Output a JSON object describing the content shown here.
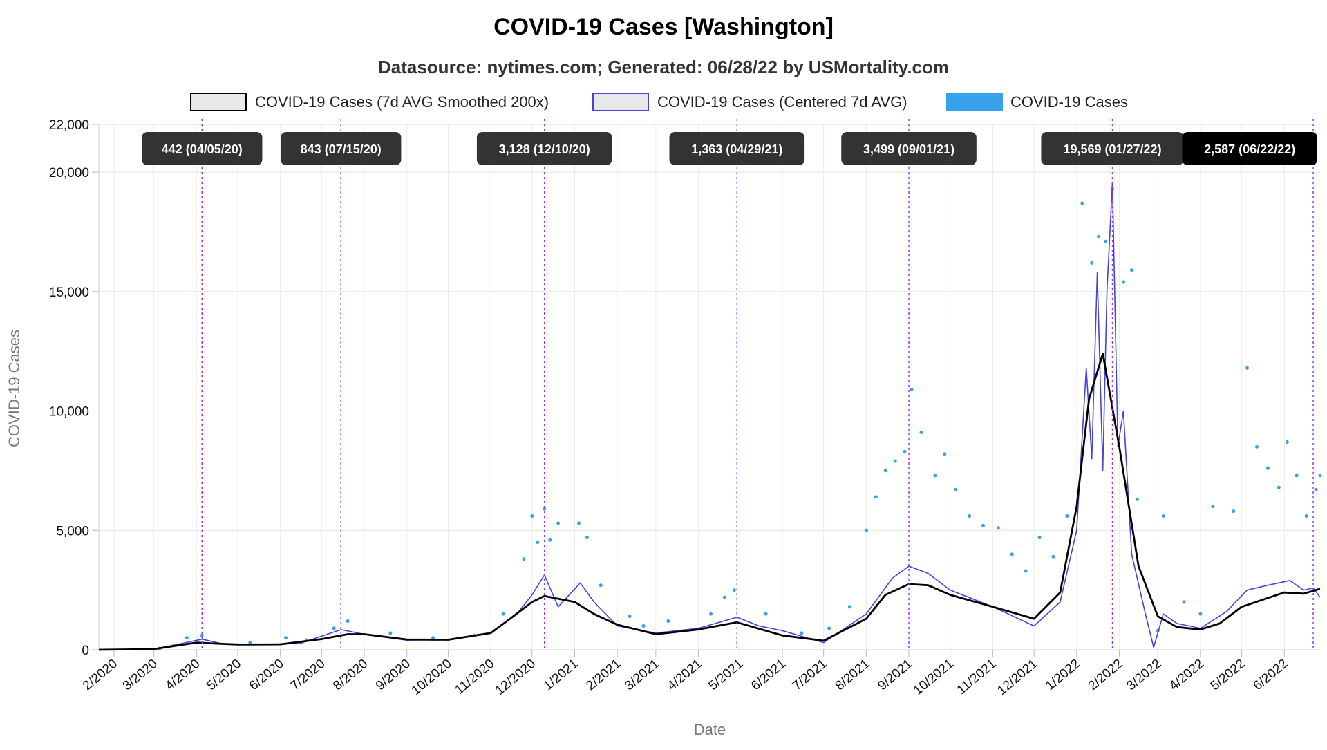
{
  "chart_data": {
    "type": "line",
    "title": "COVID-19 Cases [Washington]",
    "subtitle": "Datasource: nytimes.com; Generated: 06/28/22 by USMortality.com",
    "xlabel": "Date",
    "ylabel": "COVID-19 Cases",
    "ylim": [
      0,
      22000
    ],
    "yticks": [
      0,
      5000,
      10000,
      15000,
      20000,
      22000
    ],
    "ytick_labels": [
      "0",
      "5,000",
      "10,000",
      "15,000",
      "20,000",
      "22,000"
    ],
    "x_range": [
      "2020-01-21",
      "2022-06-27"
    ],
    "x_ticks": [
      {
        "date": "2020-02-01",
        "label": "2/2020"
      },
      {
        "date": "2020-03-01",
        "label": "3/2020"
      },
      {
        "date": "2020-04-01",
        "label": "4/2020"
      },
      {
        "date": "2020-05-01",
        "label": "5/2020"
      },
      {
        "date": "2020-06-01",
        "label": "6/2020"
      },
      {
        "date": "2020-07-01",
        "label": "7/2020"
      },
      {
        "date": "2020-08-01",
        "label": "8/2020"
      },
      {
        "date": "2020-09-01",
        "label": "9/2020"
      },
      {
        "date": "2020-10-01",
        "label": "10/2020"
      },
      {
        "date": "2020-11-01",
        "label": "11/2020"
      },
      {
        "date": "2020-12-01",
        "label": "12/2020"
      },
      {
        "date": "2021-01-01",
        "label": "1/2021"
      },
      {
        "date": "2021-02-01",
        "label": "2/2021"
      },
      {
        "date": "2021-03-01",
        "label": "3/2021"
      },
      {
        "date": "2021-04-01",
        "label": "4/2021"
      },
      {
        "date": "2021-05-01",
        "label": "5/2021"
      },
      {
        "date": "2021-06-01",
        "label": "6/2021"
      },
      {
        "date": "2021-07-01",
        "label": "7/2021"
      },
      {
        "date": "2021-08-01",
        "label": "8/2021"
      },
      {
        "date": "2021-09-01",
        "label": "9/2021"
      },
      {
        "date": "2021-10-01",
        "label": "10/2021"
      },
      {
        "date": "2021-11-01",
        "label": "11/2021"
      },
      {
        "date": "2021-12-01",
        "label": "12/2021"
      },
      {
        "date": "2022-01-01",
        "label": "1/2022"
      },
      {
        "date": "2022-02-01",
        "label": "2/2022"
      },
      {
        "date": "2022-03-01",
        "label": "3/2022"
      },
      {
        "date": "2022-04-01",
        "label": "4/2022"
      },
      {
        "date": "2022-05-01",
        "label": "5/2022"
      },
      {
        "date": "2022-06-01",
        "label": "6/2022"
      }
    ],
    "legend": {
      "placement": "top",
      "items": [
        {
          "label": "COVID-19 Cases (7d AVG Smoothed 200x)",
          "fill": "#e8e8e8",
          "stroke": "#000000"
        },
        {
          "label": "COVID-19 Cases (Centered 7d AVG)",
          "fill": "#e8e8e8",
          "stroke": "#4444dd"
        },
        {
          "label": "COVID-19 Cases",
          "fill": "#36a2eb",
          "stroke": "#36a2eb"
        }
      ]
    },
    "series": [
      {
        "name": "COVID-19 Cases (7d AVG Smoothed 200x)",
        "color": "#000000",
        "points": [
          [
            "2020-01-21",
            0
          ],
          [
            "2020-03-01",
            30
          ],
          [
            "2020-03-15",
            150
          ],
          [
            "2020-04-01",
            300
          ],
          [
            "2020-04-15",
            260
          ],
          [
            "2020-05-01",
            220
          ],
          [
            "2020-06-01",
            230
          ],
          [
            "2020-07-01",
            450
          ],
          [
            "2020-07-20",
            650
          ],
          [
            "2020-08-01",
            650
          ],
          [
            "2020-09-01",
            430
          ],
          [
            "2020-10-01",
            420
          ],
          [
            "2020-11-01",
            700
          ],
          [
            "2020-11-15",
            1300
          ],
          [
            "2020-12-01",
            2000
          ],
          [
            "2020-12-10",
            2250
          ],
          [
            "2021-01-01",
            2000
          ],
          [
            "2021-01-15",
            1500
          ],
          [
            "2021-02-01",
            1050
          ],
          [
            "2021-03-01",
            650
          ],
          [
            "2021-04-01",
            850
          ],
          [
            "2021-04-29",
            1150
          ],
          [
            "2021-06-01",
            600
          ],
          [
            "2021-07-01",
            380
          ],
          [
            "2021-08-01",
            1300
          ],
          [
            "2021-08-15",
            2300
          ],
          [
            "2021-09-01",
            2750
          ],
          [
            "2021-09-15",
            2700
          ],
          [
            "2021-10-01",
            2300
          ],
          [
            "2021-11-01",
            1800
          ],
          [
            "2021-12-01",
            1300
          ],
          [
            "2021-12-20",
            2400
          ],
          [
            "2022-01-01",
            6000
          ],
          [
            "2022-01-10",
            10500
          ],
          [
            "2022-01-20",
            12400
          ],
          [
            "2022-02-01",
            8500
          ],
          [
            "2022-02-15",
            3500
          ],
          [
            "2022-03-01",
            1400
          ],
          [
            "2022-03-15",
            950
          ],
          [
            "2022-04-01",
            850
          ],
          [
            "2022-04-15",
            1100
          ],
          [
            "2022-05-01",
            1800
          ],
          [
            "2022-06-01",
            2400
          ],
          [
            "2022-06-15",
            2350
          ],
          [
            "2022-06-27",
            2550
          ]
        ]
      },
      {
        "name": "COVID-19 Cases (Centered 7d AVG)",
        "color": "#4444dd",
        "points": [
          [
            "2020-01-21",
            0
          ],
          [
            "2020-03-01",
            30
          ],
          [
            "2020-03-20",
            250
          ],
          [
            "2020-04-05",
            442
          ],
          [
            "2020-04-20",
            250
          ],
          [
            "2020-05-15",
            230
          ],
          [
            "2020-06-15",
            260
          ],
          [
            "2020-07-15",
            843
          ],
          [
            "2020-08-01",
            650
          ],
          [
            "2020-09-01",
            400
          ],
          [
            "2020-10-01",
            430
          ],
          [
            "2020-11-01",
            700
          ],
          [
            "2020-11-20",
            1500
          ],
          [
            "2020-12-01",
            2300
          ],
          [
            "2020-12-10",
            3128
          ],
          [
            "2020-12-20",
            1800
          ],
          [
            "2021-01-05",
            2800
          ],
          [
            "2021-01-15",
            2000
          ],
          [
            "2021-02-01",
            1000
          ],
          [
            "2021-03-01",
            700
          ],
          [
            "2021-04-01",
            900
          ],
          [
            "2021-04-29",
            1363
          ],
          [
            "2021-05-15",
            1000
          ],
          [
            "2021-06-01",
            800
          ],
          [
            "2021-07-01",
            300
          ],
          [
            "2021-08-01",
            1500
          ],
          [
            "2021-08-20",
            3000
          ],
          [
            "2021-09-01",
            3499
          ],
          [
            "2021-09-15",
            3200
          ],
          [
            "2021-10-01",
            2500
          ],
          [
            "2021-11-01",
            1800
          ],
          [
            "2021-12-01",
            1000
          ],
          [
            "2021-12-20",
            2000
          ],
          [
            "2022-01-01",
            5000
          ],
          [
            "2022-01-08",
            11800
          ],
          [
            "2022-01-12",
            8000
          ],
          [
            "2022-01-16",
            15800
          ],
          [
            "2022-01-20",
            7500
          ],
          [
            "2022-01-23",
            15000
          ],
          [
            "2022-01-27",
            19569
          ],
          [
            "2022-01-31",
            8500
          ],
          [
            "2022-02-04",
            10000
          ],
          [
            "2022-02-10",
            4000
          ],
          [
            "2022-02-20",
            1500
          ],
          [
            "2022-02-26",
            100
          ],
          [
            "2022-03-05",
            1500
          ],
          [
            "2022-03-15",
            1100
          ],
          [
            "2022-04-01",
            900
          ],
          [
            "2022-04-20",
            1600
          ],
          [
            "2022-05-05",
            2500
          ],
          [
            "2022-05-20",
            2700
          ],
          [
            "2022-06-05",
            2900
          ],
          [
            "2022-06-15",
            2500
          ],
          [
            "2022-06-22",
            2587
          ],
          [
            "2022-06-27",
            2200
          ]
        ]
      },
      {
        "name": "COVID-19 Cases",
        "color": "#36a2eb",
        "points": [
          [
            "2020-03-25",
            500
          ],
          [
            "2020-04-05",
            600
          ],
          [
            "2020-05-10",
            300
          ],
          [
            "2020-06-20",
            400
          ],
          [
            "2020-07-10",
            900
          ],
          [
            "2020-07-20",
            1200
          ],
          [
            "2020-08-20",
            700
          ],
          [
            "2020-09-20",
            500
          ],
          [
            "2020-10-20",
            600
          ],
          [
            "2020-11-10",
            1500
          ],
          [
            "2020-11-25",
            3800
          ],
          [
            "2020-12-01",
            5600
          ],
          [
            "2020-12-05",
            4500
          ],
          [
            "2020-12-10",
            5900
          ],
          [
            "2020-12-14",
            4600
          ],
          [
            "2020-12-20",
            5300
          ],
          [
            "2021-01-04",
            5300
          ],
          [
            "2021-01-10",
            4700
          ],
          [
            "2021-01-20",
            2700
          ],
          [
            "2021-02-10",
            1400
          ],
          [
            "2021-03-10",
            1200
          ],
          [
            "2021-04-10",
            1500
          ],
          [
            "2021-04-20",
            2200
          ],
          [
            "2021-04-27",
            2500
          ],
          [
            "2021-05-20",
            1500
          ],
          [
            "2021-07-05",
            900
          ],
          [
            "2021-07-20",
            1800
          ],
          [
            "2021-08-01",
            5000
          ],
          [
            "2021-08-08",
            6400
          ],
          [
            "2021-08-15",
            7500
          ],
          [
            "2021-08-22",
            7900
          ],
          [
            "2021-08-29",
            8300
          ],
          [
            "2021-09-03",
            10900
          ],
          [
            "2021-09-10",
            9100
          ],
          [
            "2021-09-20",
            7300
          ],
          [
            "2021-09-27",
            8200
          ],
          [
            "2021-10-05",
            6700
          ],
          [
            "2021-10-15",
            5600
          ],
          [
            "2021-10-25",
            5200
          ],
          [
            "2021-11-05",
            5100
          ],
          [
            "2021-11-15",
            4000
          ],
          [
            "2021-11-25",
            3300
          ],
          [
            "2021-12-05",
            4700
          ],
          [
            "2021-12-15",
            3900
          ],
          [
            "2021-12-25",
            5600
          ],
          [
            "2022-01-05",
            18700
          ],
          [
            "2022-01-12",
            16200
          ],
          [
            "2022-01-17",
            17300
          ],
          [
            "2022-01-22",
            17100
          ],
          [
            "2022-01-27",
            19300
          ],
          [
            "2022-02-04",
            15400
          ],
          [
            "2022-02-10",
            15900
          ],
          [
            "2022-02-14",
            6300
          ],
          [
            "2022-03-05",
            5600
          ],
          [
            "2022-03-20",
            2000
          ],
          [
            "2022-04-10",
            6000
          ],
          [
            "2022-04-25",
            5800
          ],
          [
            "2022-05-05",
            11800
          ],
          [
            "2022-05-12",
            8500
          ],
          [
            "2022-05-20",
            7600
          ],
          [
            "2022-05-28",
            6800
          ],
          [
            "2022-06-03",
            8700
          ],
          [
            "2022-06-10",
            7300
          ],
          [
            "2022-06-17",
            5600
          ],
          [
            "2022-06-24",
            6700
          ],
          [
            "2022-06-27",
            7300
          ],
          [
            "2020-06-05",
            500
          ],
          [
            "2021-02-20",
            1000
          ],
          [
            "2021-06-15",
            700
          ],
          [
            "2020-03-05",
            50
          ],
          [
            "2022-03-01",
            800
          ],
          [
            "2022-04-01",
            1500
          ]
        ]
      }
    ],
    "annotations": [
      {
        "date": "2020-04-05",
        "label": "442 (04/05/20)",
        "box_color": "#333333"
      },
      {
        "date": "2020-07-15",
        "label": "843 (07/15/20)",
        "box_color": "#333333"
      },
      {
        "date": "2020-12-10",
        "label": "3,128 (12/10/20)",
        "box_color": "#333333"
      },
      {
        "date": "2021-04-29",
        "label": "1,363 (04/29/21)",
        "box_color": "#333333"
      },
      {
        "date": "2021-09-01",
        "label": "3,499 (09/01/21)",
        "box_color": "#333333"
      },
      {
        "date": "2022-01-27",
        "label": "19,569 (01/27/22)",
        "box_color": "#333333"
      },
      {
        "date": "2022-06-22",
        "label": "2,587 (06/22/22)",
        "box_color": "#000000"
      }
    ],
    "annotation_line_color": "#9b30ff",
    "grid": true
  }
}
